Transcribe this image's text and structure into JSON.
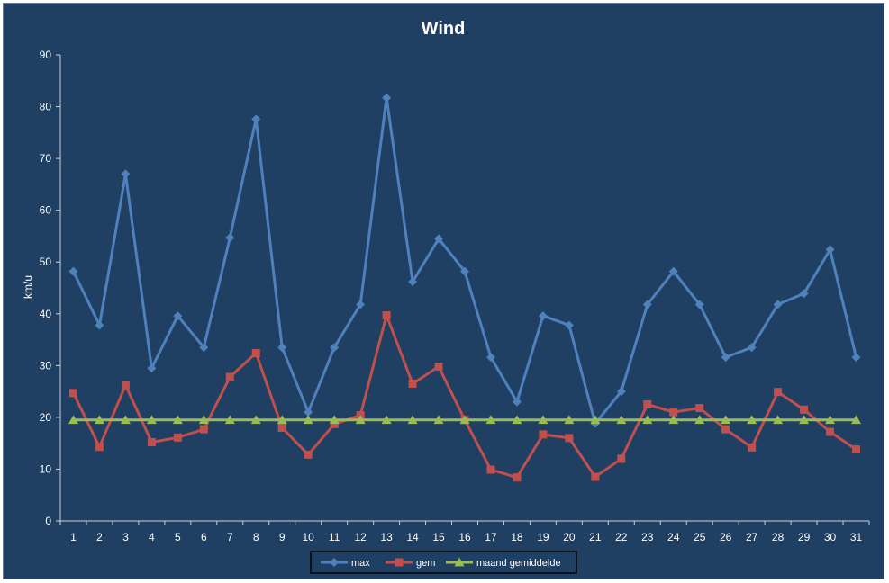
{
  "chart_data": {
    "type": "line",
    "title": "Wind",
    "xlabel": "",
    "ylabel": "km/u",
    "ylim": [
      0,
      90
    ],
    "yticks": [
      0,
      10,
      20,
      30,
      40,
      50,
      60,
      70,
      80,
      90
    ],
    "grid": false,
    "legend_position": "bottom",
    "background_color": "#1f3f63",
    "categories": [
      "1",
      "2",
      "3",
      "4",
      "5",
      "6",
      "7",
      "8",
      "9",
      "10",
      "11",
      "12",
      "13",
      "14",
      "15",
      "16",
      "17",
      "18",
      "19",
      "20",
      "21",
      "22",
      "23",
      "24",
      "25",
      "26",
      "27",
      "28",
      "29",
      "30",
      "31"
    ],
    "series": [
      {
        "name": "max",
        "color": "#4f81bd",
        "marker": "diamond",
        "values": [
          48.2,
          37.8,
          67.0,
          29.5,
          39.6,
          33.5,
          54.7,
          77.6,
          33.5,
          21.0,
          33.5,
          41.8,
          81.7,
          46.2,
          54.5,
          48.2,
          31.6,
          23.0,
          39.6,
          37.8,
          18.8,
          25.0,
          41.8,
          48.2,
          41.8,
          31.6,
          33.5,
          41.8,
          43.9,
          52.4,
          31.6
        ]
      },
      {
        "name": "gem",
        "color": "#c0504d",
        "marker": "square",
        "values": [
          24.7,
          14.3,
          26.2,
          15.2,
          16.1,
          17.7,
          27.8,
          32.4,
          18.0,
          12.8,
          18.7,
          20.4,
          39.7,
          26.5,
          29.8,
          19.5,
          9.9,
          8.4,
          16.7,
          16.0,
          8.5,
          12.0,
          22.5,
          21.0,
          21.8,
          17.7,
          14.2,
          24.9,
          21.5,
          17.2,
          13.8
        ]
      },
      {
        "name": "maand gemiddelde",
        "color": "#9bbb59",
        "marker": "triangle",
        "values": [
          19.5,
          19.5,
          19.5,
          19.5,
          19.5,
          19.5,
          19.5,
          19.5,
          19.5,
          19.5,
          19.5,
          19.5,
          19.5,
          19.5,
          19.5,
          19.5,
          19.5,
          19.5,
          19.5,
          19.5,
          19.5,
          19.5,
          19.5,
          19.5,
          19.5,
          19.5,
          19.5,
          19.5,
          19.5,
          19.5,
          19.5
        ]
      }
    ]
  }
}
